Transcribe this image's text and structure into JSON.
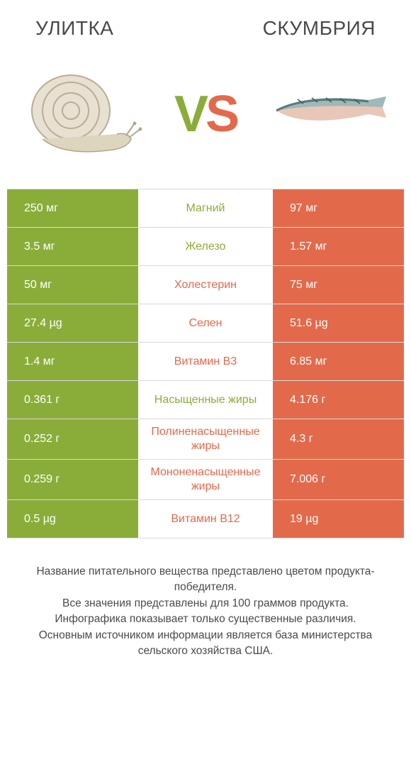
{
  "colors": {
    "green": "#8aad3a",
    "orange": "#e26a4b",
    "text": "#4a4a4a",
    "white": "#ffffff",
    "border": "#d9d9d9"
  },
  "header": {
    "left": "УЛИТКА",
    "right": "СКУМБРИЯ"
  },
  "vs": {
    "v": "V",
    "s": "S"
  },
  "rows": [
    {
      "left": "250 мг",
      "label": "Магний",
      "right": "97 мг",
      "winner": "left"
    },
    {
      "left": "3.5 мг",
      "label": "Железо",
      "right": "1.57 мг",
      "winner": "left"
    },
    {
      "left": "50 мг",
      "label": "Холестерин",
      "right": "75 мг",
      "winner": "right"
    },
    {
      "left": "27.4 µg",
      "label": "Селен",
      "right": "51.6 µg",
      "winner": "right"
    },
    {
      "left": "1.4 мг",
      "label": "Витамин B3",
      "right": "6.85 мг",
      "winner": "right"
    },
    {
      "left": "0.361 г",
      "label": "Насыщенные жиры",
      "right": "4.176 г",
      "winner": "left"
    },
    {
      "left": "0.252 г",
      "label": "Полиненасыщенные жиры",
      "right": "4.3 г",
      "winner": "right"
    },
    {
      "left": "0.259 г",
      "label": "Мононенасыщенные жиры",
      "right": "7.006 г",
      "winner": "right"
    },
    {
      "left": "0.5 µg",
      "label": "Витамин B12",
      "right": "19 µg",
      "winner": "right"
    }
  ],
  "footer": {
    "l1": "Название питательного вещества представлено цветом продукта-победителя.",
    "l2": "Все значения представлены для 100 граммов продукта.",
    "l3": "Инфографика показывает только существенные различия.",
    "l4": "Основным источником информации является база министерства сельского хозяйства США."
  }
}
